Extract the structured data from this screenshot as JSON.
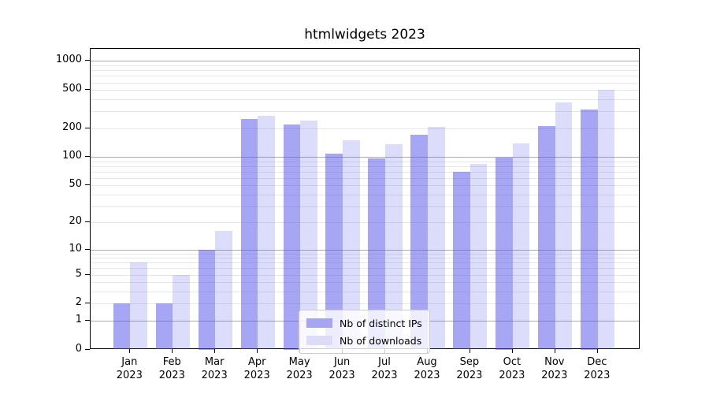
{
  "title": "htmlwidgets 2023",
  "colors": {
    "bar_ips_fill": "rgba(80,80,235,0.51)",
    "bar_downloads_fill": "rgba(80,80,235,0.20)",
    "bar_ips_solid": "#a5a5f2",
    "bar_downloads_solid": "#dcdcf8",
    "grid_major": "#ababab",
    "grid_minor": "#e7e7e7",
    "axis": "#000000",
    "legend_border": "#cccccc"
  },
  "legend": {
    "items": [
      {
        "label": "Nb of distinct IPs",
        "color": "#a5a5f2"
      },
      {
        "label": "Nb of downloads",
        "color": "#dcdcf8"
      }
    ]
  },
  "chart_data": {
    "type": "bar",
    "title": "htmlwidgets 2023",
    "categories": [
      "Jan 2023",
      "Feb 2023",
      "Mar 2023",
      "Apr 2023",
      "May 2023",
      "Jun 2023",
      "Jul 2023",
      "Aug 2023",
      "Sep 2023",
      "Oct 2023",
      "Nov 2023",
      "Dec 2023"
    ],
    "series": [
      {
        "name": "Nb of distinct IPs",
        "color": "#a5a5f2",
        "values": [
          2,
          2,
          10,
          250,
          220,
          107,
          96,
          170,
          70,
          98,
          210,
          315
        ]
      },
      {
        "name": "Nb of downloads",
        "color": "#dcdcf8",
        "values": [
          7,
          5,
          16,
          270,
          240,
          148,
          136,
          205,
          84,
          137,
          370,
          505
        ]
      }
    ],
    "yscale": "log1p (position ~ log10(1+value))",
    "ylabel": "",
    "xlabel": "",
    "yticks": [
      0,
      1,
      2,
      5,
      10,
      20,
      50,
      100,
      200,
      500,
      1000
    ],
    "yticks_major_grid": [
      1,
      10,
      100,
      1000
    ],
    "yticks_minor_grid": [
      2,
      3,
      4,
      5,
      6,
      7,
      8,
      9,
      20,
      30,
      40,
      50,
      60,
      70,
      80,
      90,
      200,
      300,
      400,
      500,
      600,
      700,
      800,
      900
    ],
    "ylim": [
      0,
      1350
    ],
    "grid": true,
    "legend_position": "inside lower-center-right"
  }
}
